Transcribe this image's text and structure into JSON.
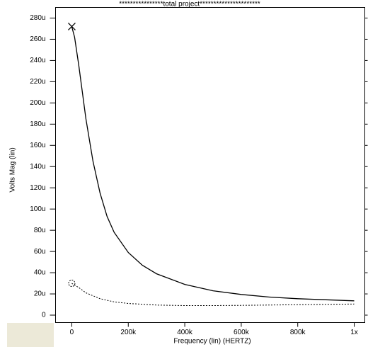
{
  "chart_data": {
    "type": "line",
    "title": "****************total project**********************",
    "x_label": "Frequency (lin) (HERTZ)",
    "y_label": "Volts Mag (lin)",
    "xlim": [
      -57500,
      1037500
    ],
    "ylim": [
      -7,
      290
    ],
    "xticks": [
      0,
      {
        "value": 200000,
        "label": "200k"
      },
      {
        "value": 400000,
        "label": "400k"
      },
      {
        "value": 600000,
        "label": "600k"
      },
      {
        "value": 800000,
        "label": "800k"
      },
      {
        "value": 1000000,
        "label": "1x"
      }
    ],
    "yticks": [
      0,
      {
        "value": 20,
        "label": "20u"
      },
      {
        "value": 40,
        "label": "40u"
      },
      {
        "value": 60,
        "label": "60u"
      },
      {
        "value": 80,
        "label": "80u"
      },
      {
        "value": 100,
        "label": "100u"
      },
      {
        "value": 120,
        "label": "120u"
      },
      {
        "value": 140,
        "label": "140u"
      },
      {
        "value": 160,
        "label": "160u"
      },
      {
        "value": 180,
        "label": "180u"
      },
      {
        "value": 200,
        "label": "200u"
      },
      {
        "value": 220,
        "label": "220u"
      },
      {
        "value": 240,
        "label": "240u"
      },
      {
        "value": 260,
        "label": "260u"
      },
      {
        "value": 280,
        "label": "280u"
      }
    ],
    "series": [
      {
        "color": "#000000",
        "dash": "solid",
        "marker": "x",
        "x": [
          0,
          10000,
          25000,
          50000,
          75000,
          100000,
          125000,
          150000,
          200000,
          250000,
          300000,
          400000,
          500000,
          600000,
          700000,
          800000,
          900000,
          1000000
        ],
        "values": [
          272,
          262,
          235,
          185,
          145,
          115,
          93,
          78,
          59,
          47,
          39,
          29,
          23,
          19.5,
          17,
          15.5,
          14.5,
          13.5
        ]
      },
      {
        "color": "#000000",
        "dash": "dotted",
        "marker": "circle",
        "x": [
          0,
          25000,
          50000,
          100000,
          150000,
          200000,
          300000,
          400000,
          500000,
          600000,
          800000,
          1000000
        ],
        "values": [
          30,
          26,
          21,
          15.5,
          12.5,
          11,
          9.5,
          9,
          9,
          9.2,
          9.8,
          10.5
        ]
      }
    ]
  }
}
